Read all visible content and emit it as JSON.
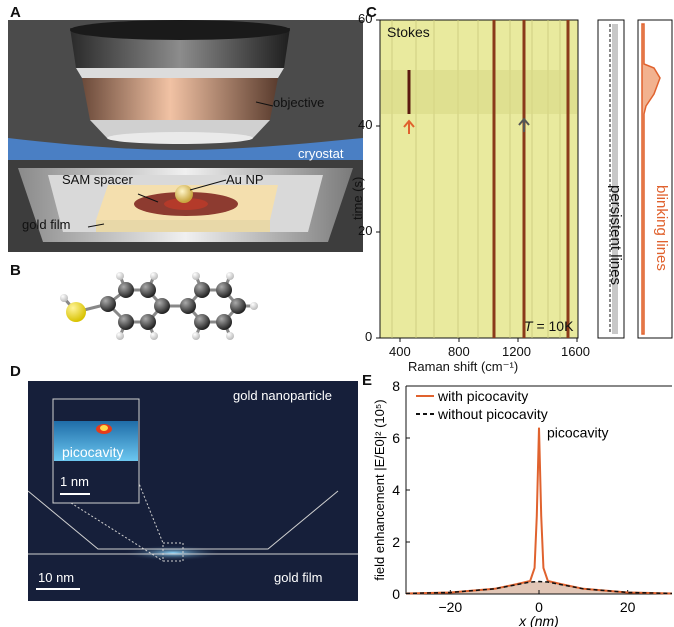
{
  "panels": {
    "A": {
      "letter": "A",
      "labels": {
        "objective": "objective",
        "cryostat": "cryostat",
        "sam_spacer": "SAM spacer",
        "au_np": "Au NP",
        "gold_film": "gold film"
      },
      "colors": {
        "cryostat": "#4a7fc4",
        "background": "#4b4b4b"
      }
    },
    "B": {
      "letter": "B"
    },
    "C": {
      "letter": "C",
      "stokes": "Stokes",
      "ylabel": "time (s)",
      "xlabel": "Raman shift (cm⁻¹)",
      "temperature": "T = 10K",
      "temperature_var": "T",
      "temperature_val": " = 10K",
      "yticks": [
        "0",
        "20",
        "40",
        "60"
      ],
      "xticks": [
        "400",
        "800",
        "1200",
        "1600"
      ],
      "side_labels": {
        "persistent": "persistent lines",
        "blinking": "blinking lines"
      },
      "colors": {
        "map": "#e9ea9e",
        "blinking": "#e0622e",
        "persistent": "#c8c8c8"
      }
    },
    "D": {
      "letter": "D",
      "labels": {
        "gold_nanoparticle": "gold nanoparticle",
        "gold_film": "gold film",
        "picocavity": "picocavity",
        "scale_inset": "1 nm",
        "scale_main": "10 nm"
      },
      "colors": {
        "background": "#161f3a",
        "field": "#3aa6e0"
      }
    },
    "E": {
      "letter": "E"
    }
  },
  "chart_data": {
    "type": "line",
    "title": "",
    "xlabel": "x (nm)",
    "ylabel": "field enhancement |E/E0|² (10⁵)",
    "xlim": [
      -30,
      30
    ],
    "ylim": [
      0,
      8
    ],
    "xticks": [
      -20,
      0,
      20
    ],
    "yticks": [
      0,
      2,
      4,
      6,
      8
    ],
    "annotation": "picocavity",
    "legend_position": "top-left",
    "series": [
      {
        "name": "with picocavity",
        "color": "#e0622e",
        "x": [
          -30,
          -20,
          -10,
          -5,
          -2,
          -1,
          -0.5,
          0,
          0.5,
          1,
          2,
          5,
          10,
          20,
          30
        ],
        "y": [
          0.02,
          0.06,
          0.2,
          0.38,
          0.5,
          1.0,
          3.0,
          6.4,
          3.0,
          1.0,
          0.5,
          0.38,
          0.2,
          0.06,
          0.02
        ]
      },
      {
        "name": "without picocavity",
        "color": "#111111",
        "x": [
          -30,
          -20,
          -10,
          -5,
          -2,
          0,
          2,
          5,
          10,
          20,
          30
        ],
        "y": [
          0.02,
          0.06,
          0.2,
          0.36,
          0.46,
          0.48,
          0.46,
          0.36,
          0.2,
          0.06,
          0.02
        ]
      }
    ]
  }
}
